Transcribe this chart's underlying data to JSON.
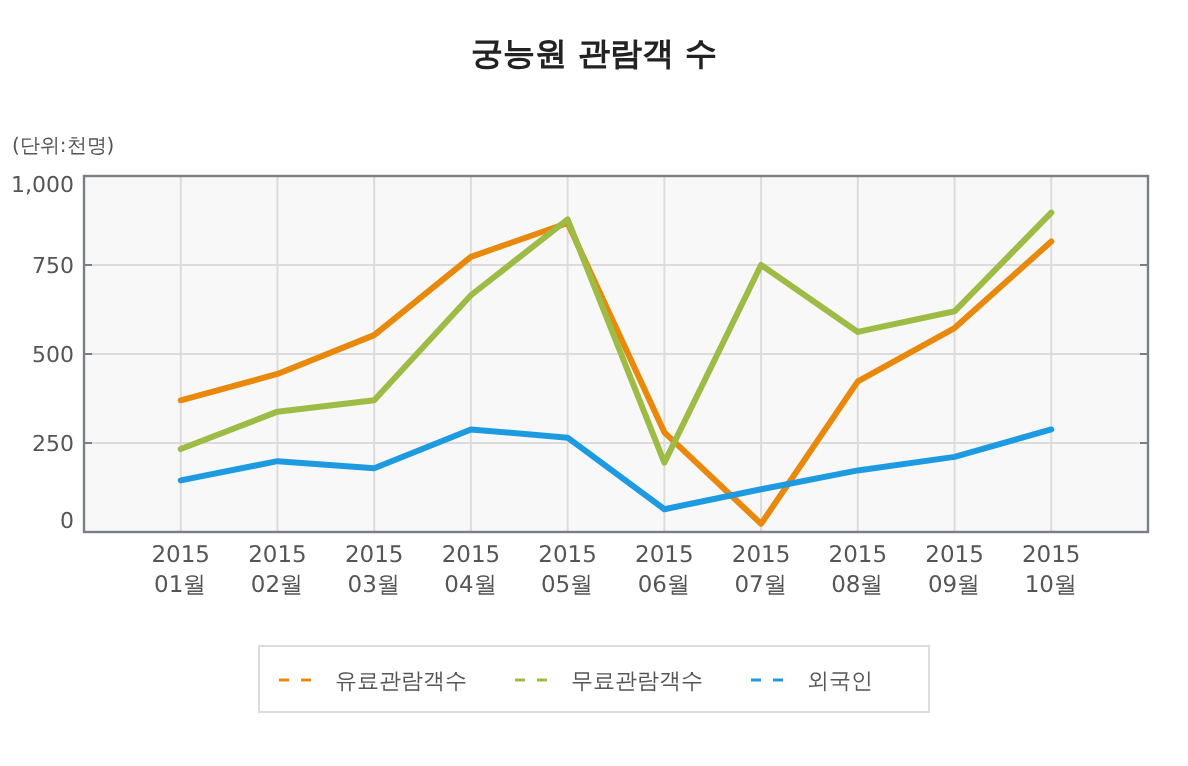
{
  "chart_data": {
    "type": "line",
    "title": "궁능원 관람객 수",
    "annotations": [
      "(단위:천명)"
    ],
    "categories": [
      "2015 01월",
      "2015 02월",
      "2015 03월",
      "2015 04월",
      "2015 05월",
      "2015 06월",
      "2015 07월",
      "2015 08월",
      "2015 09월",
      "2015 10월"
    ],
    "series": [
      {
        "name": "유료관람객수",
        "color": "#e8890c",
        "values": [
          370,
          444,
          553,
          773,
          868,
          280,
          23,
          423,
          573,
          816
        ]
      },
      {
        "name": "무료관람객수",
        "color": "#9dbb45",
        "values": [
          233,
          338,
          370,
          665,
          878,
          195,
          750,
          562,
          620,
          897
        ]
      },
      {
        "name": "외국인",
        "color": "#1e9ae0",
        "values": [
          145,
          199,
          179,
          288,
          265,
          64,
          120,
          173,
          211,
          288
        ]
      }
    ],
    "ylim": [
      0,
      1000
    ],
    "yticks": [
      0,
      250,
      500,
      750,
      {
        "value": 1000,
        "label": "1,000"
      }
    ],
    "grid": true,
    "legend": "bottom",
    "marker": "none",
    "line_style": "solid"
  }
}
